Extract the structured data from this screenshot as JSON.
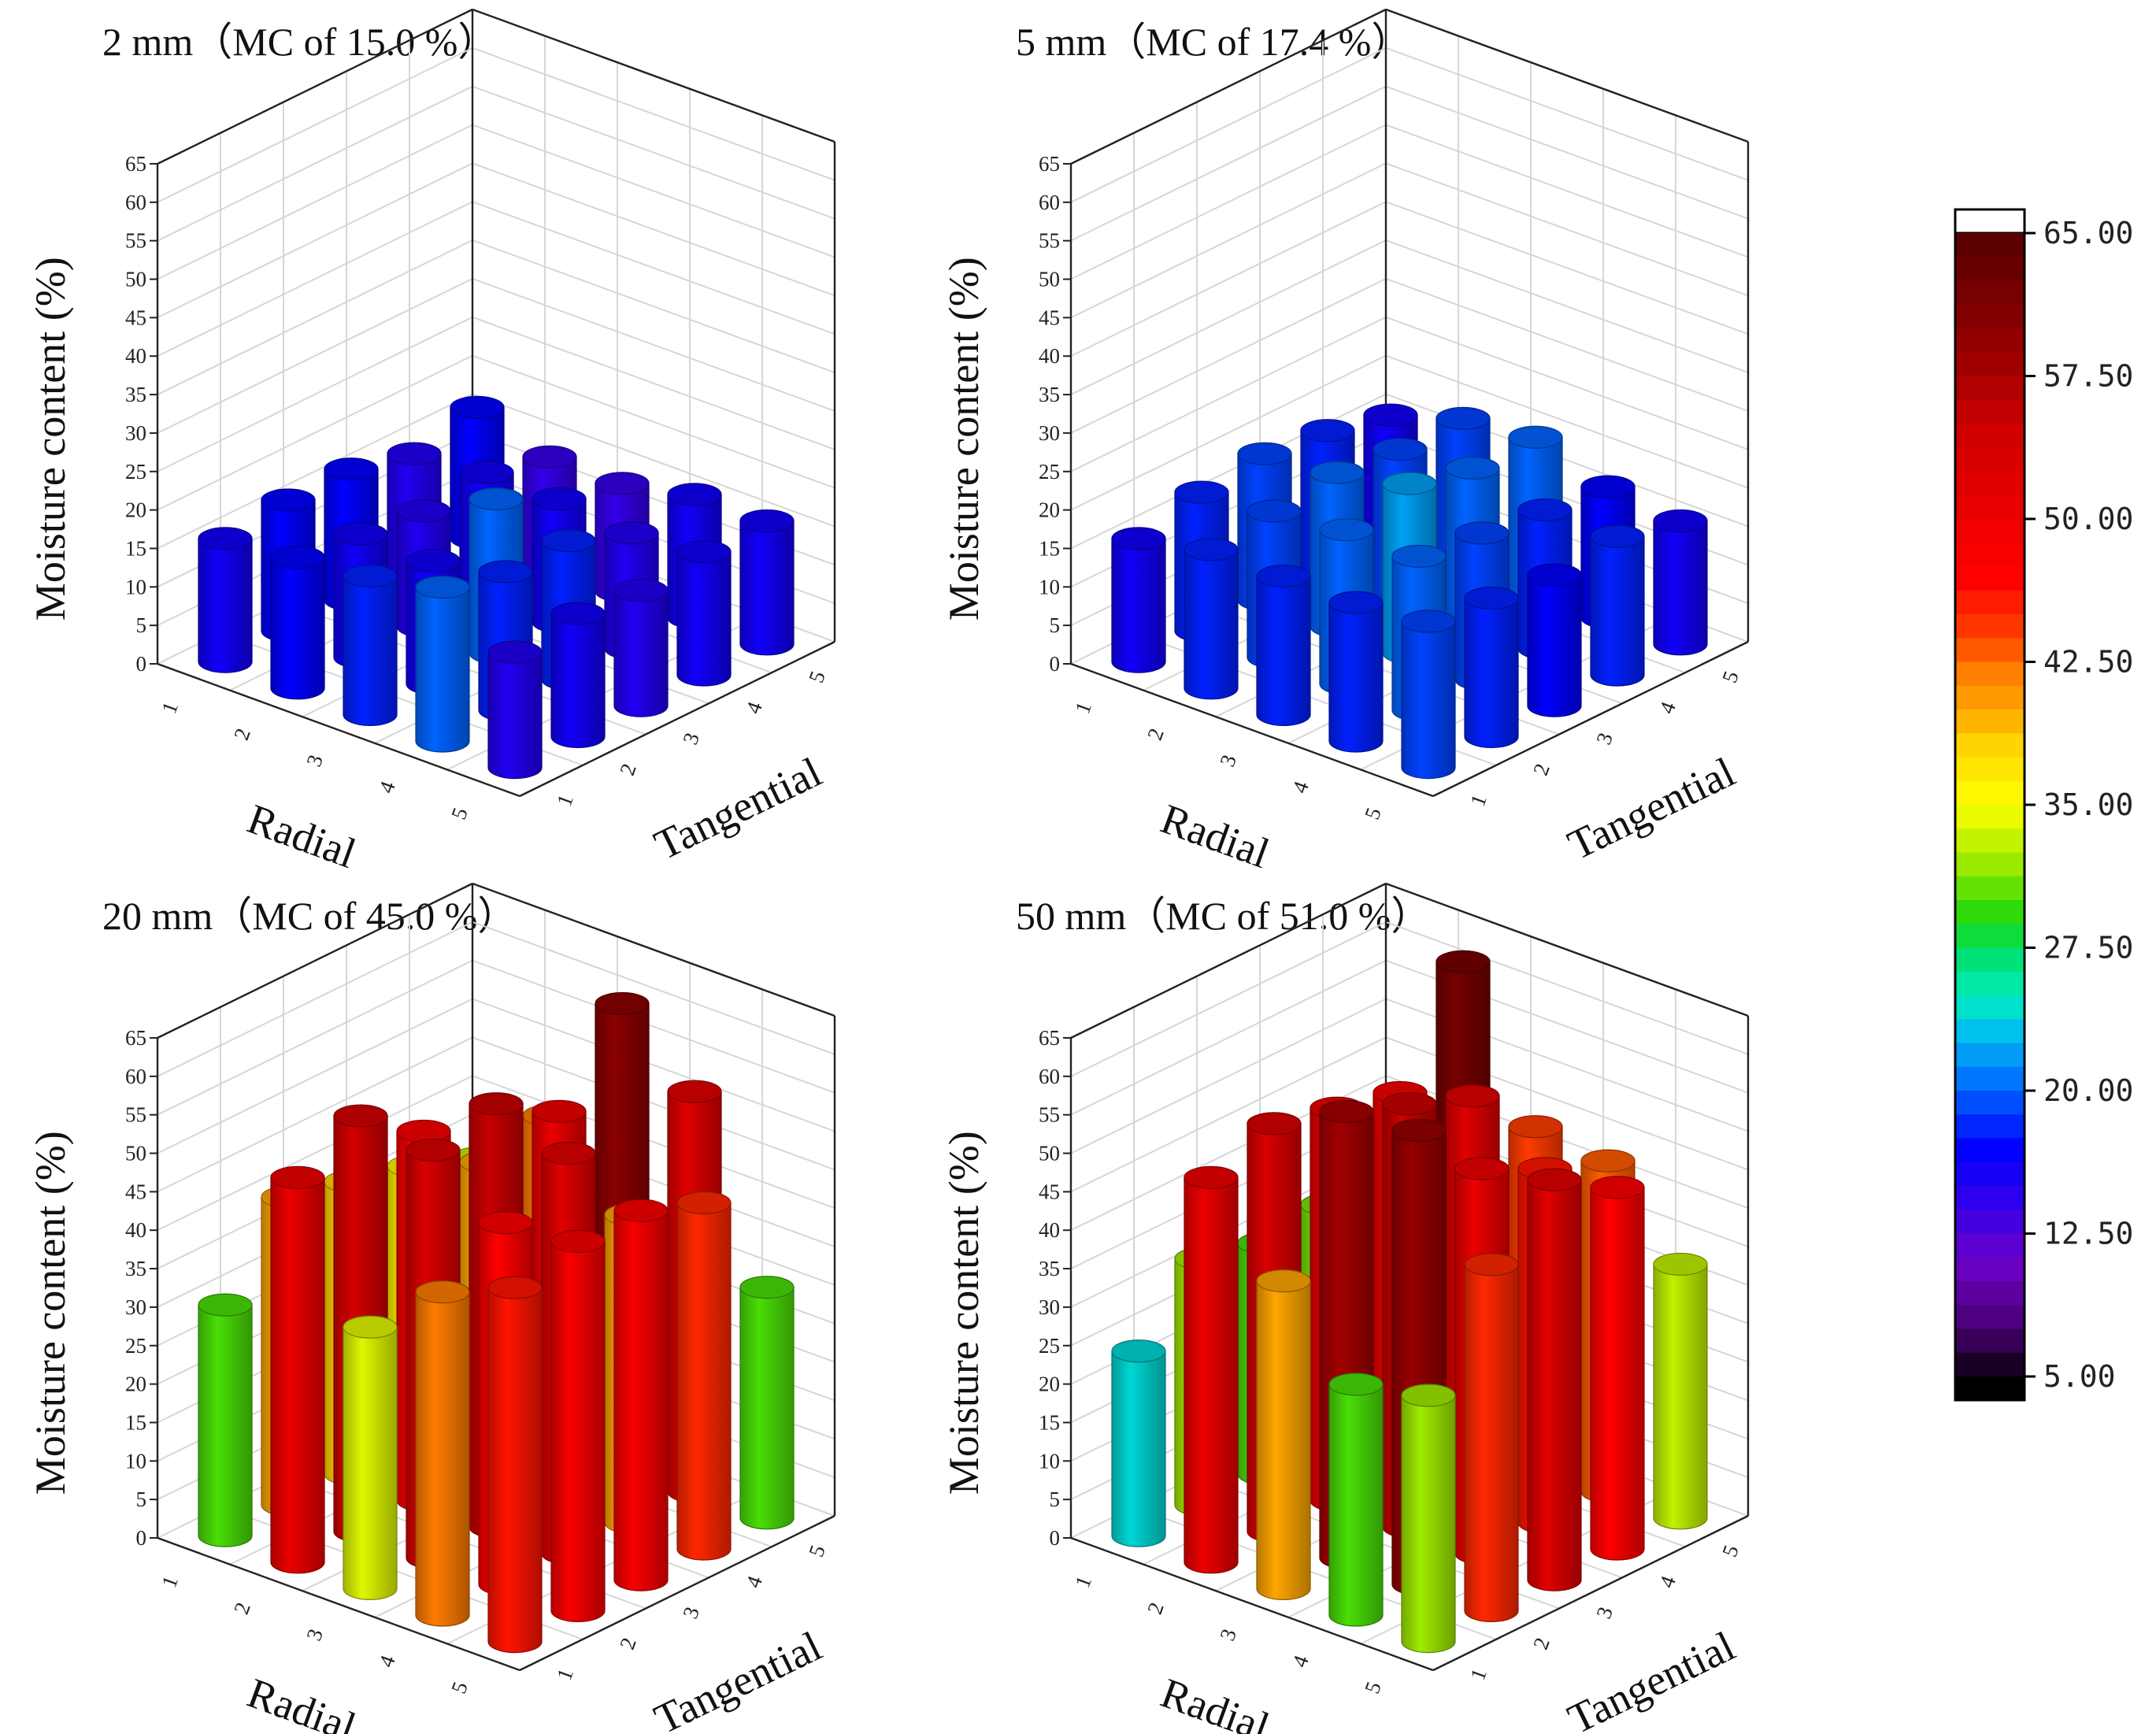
{
  "figure": {
    "grid_size": [
      5,
      5
    ],
    "colorbar": {
      "min": 5.0,
      "max": 65.0,
      "tick_labels": [
        "65.00",
        "57.50",
        "50.00",
        "42.50",
        "35.00",
        "27.50",
        "20.00",
        "12.50",
        "5.00"
      ],
      "tick_values": [
        65,
        57.5,
        50,
        42.5,
        35,
        27.5,
        20,
        12.5,
        5
      ]
    }
  },
  "chart_data": [
    {
      "type": "bar3d",
      "title": "2 mm（MC of 15.0 %）",
      "xlabel": "Radial",
      "ylabel": "Tangential",
      "zlabel": "Moisture content (%)",
      "xticks": [
        "1",
        "2",
        "3",
        "4",
        "5"
      ],
      "yticks": [
        "1",
        "2",
        "3",
        "4",
        "5"
      ],
      "zticks": [
        "0",
        "5",
        "10",
        "15",
        "20",
        "25",
        "30",
        "35",
        "40",
        "45",
        "50",
        "55",
        "60",
        "65"
      ],
      "zlim": [
        0,
        65
      ],
      "values": [
        [
          16,
          17,
          17,
          15,
          17
        ],
        [
          17,
          16,
          15,
          16,
          14
        ],
        [
          18,
          16,
          20,
          16,
          14
        ],
        [
          20,
          18,
          18,
          15,
          16
        ],
        [
          15,
          16,
          15,
          16,
          16
        ]
      ]
    },
    {
      "type": "bar3d",
      "title": "5 mm（MC of 17.4 %）",
      "xlabel": "Radial",
      "ylabel": "Tangential",
      "zlabel": "Moisture content (%)",
      "xticks": [
        "1",
        "2",
        "3",
        "4",
        "5"
      ],
      "yticks": [
        "1",
        "2",
        "3",
        "4",
        "5"
      ],
      "zticks": [
        "0",
        "5",
        "10",
        "15",
        "20",
        "25",
        "30",
        "35",
        "40",
        "45",
        "50",
        "55",
        "60",
        "65"
      ],
      "zlim": [
        0,
        65
      ],
      "values": [
        [
          16,
          18,
          19,
          18,
          16
        ],
        [
          18,
          19,
          20,
          19,
          19
        ],
        [
          18,
          20,
          22,
          20,
          20
        ],
        [
          18,
          20,
          19,
          18,
          17
        ],
        [
          19,
          18,
          17,
          18,
          16
        ]
      ]
    },
    {
      "type": "bar3d",
      "title": "20 mm（MC of 45.0 %）",
      "xlabel": "Radial",
      "ylabel": "Tangential",
      "zlabel": "Moisture content (%)",
      "xticks": [
        "1",
        "2",
        "3",
        "4",
        "5"
      ],
      "yticks": [
        "1",
        "2",
        "3",
        "4",
        "5"
      ],
      "zticks": [
        "0",
        "5",
        "10",
        "15",
        "20",
        "25",
        "30",
        "35",
        "40",
        "45",
        "50",
        "55",
        "60",
        "65"
      ],
      "zlim": [
        0,
        65
      ],
      "values": [
        [
          30,
          40,
          38,
          36,
          33
        ],
        [
          50,
          54,
          48,
          40,
          42
        ],
        [
          34,
          53,
          55,
          50,
          60
        ],
        [
          42,
          47,
          52,
          40,
          52
        ],
        [
          46,
          48,
          48,
          45,
          30
        ]
      ]
    },
    {
      "type": "bar3d",
      "title": "50 mm（MC of 51.0 %）",
      "xlabel": "Radial",
      "ylabel": "Tangential",
      "zlabel": "Moisture content (%)",
      "xticks": [
        "1",
        "2",
        "3",
        "4",
        "5"
      ],
      "yticks": [
        "1",
        "2",
        "3",
        "4",
        "5"
      ],
      "zticks": [
        "0",
        "5",
        "10",
        "15",
        "20",
        "25",
        "30",
        "35",
        "40",
        "45",
        "50",
        "55",
        "60",
        "65"
      ],
      "zlim": [
        0,
        65
      ],
      "values": [
        [
          24,
          32,
          30,
          31,
          29
        ],
        [
          50,
          53,
          51,
          49,
          62
        ],
        [
          40,
          58,
          55,
          52,
          44
        ],
        [
          30,
          59,
          50,
          46,
          43
        ],
        [
          32,
          45,
          52,
          47,
          33
        ]
      ]
    }
  ]
}
